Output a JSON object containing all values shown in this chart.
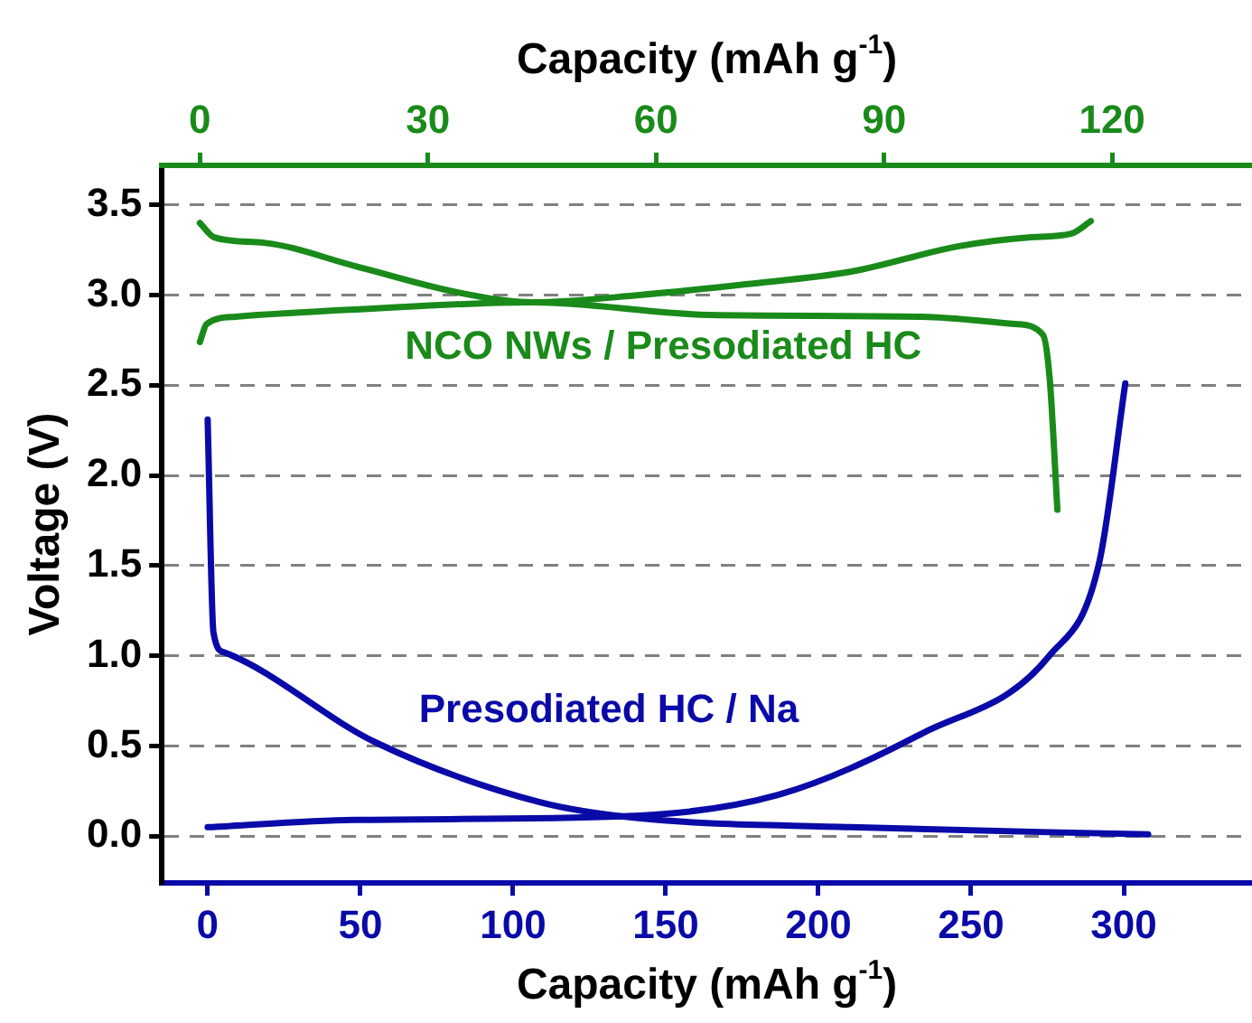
{
  "chart_data": {
    "type": "line",
    "xlabel": "Capacity (mAh g$^{-1}$)",
    "x2label": "Capacity (mAh g$^{-1}$)",
    "ylabel": "Voltage (V)",
    "xlim": [
      -15,
      342
    ],
    "xticks": [
      0,
      50,
      100,
      150,
      200,
      250,
      300
    ],
    "x2lim": [
      -5,
      138.4
    ],
    "x2ticks": [
      0,
      30,
      60,
      90,
      120
    ],
    "ylim": [
      -0.26,
      3.72
    ],
    "yticks": [
      {
        "value": 0,
        "label": "0.0"
      },
      {
        "value": 0.5,
        "label": "0.5"
      },
      {
        "value": 1,
        "label": "1.0"
      },
      {
        "value": 1.5,
        "label": "1.5"
      },
      {
        "value": 2,
        "label": "2.0"
      },
      {
        "value": 2.5,
        "label": "2.5"
      },
      {
        "value": 3,
        "label": "3.0"
      },
      {
        "value": 3.5,
        "label": "3.5"
      }
    ],
    "grid": "y",
    "legend": false,
    "marker": "none",
    "line_style": "solid",
    "series": [
      {
        "color": "#1a8a1a",
        "axis": "x2",
        "x": [
          0,
          1.9,
          8.4,
          20.5,
          34.5,
          43.8,
          57.8,
          71.8,
          85.7,
          99.7,
          109,
          114.6,
          117.2
        ],
        "values": [
          3.4,
          3.32,
          3.29,
          3.16,
          3.01,
          2.96,
          3.0,
          3.06,
          3.13,
          3.27,
          3.32,
          3.34,
          3.41
        ]
      },
      {
        "color": "#1a8a1a",
        "axis": "x2",
        "x": [
          0,
          0.9,
          4.7,
          20.5,
          43.8,
          67.1,
          95,
          107.2,
          110.9,
          111.8,
          112.8
        ],
        "values": [
          2.74,
          2.84,
          2.88,
          2.92,
          2.96,
          2.89,
          2.88,
          2.84,
          2.78,
          2.53,
          1.81
        ]
      },
      {
        "color": "#0a0aa8",
        "x": [
          0,
          1.9,
          5.3,
          55,
          108.5,
          141,
          210.6,
          308
        ],
        "values": [
          2.31,
          1.13,
          1.02,
          0.52,
          0.19,
          0.1,
          0.05,
          0.01
        ]
      },
      {
        "color": "#0a0aa8",
        "x": [
          0,
          48,
          136,
          187,
          234,
          275.6,
          292,
          300.5
        ],
        "values": [
          0.05,
          0.09,
          0.11,
          0.23,
          0.57,
          1.0,
          1.52,
          2.51
        ]
      }
    ],
    "annotations": [
      "NCO NWs / Presodiated HC",
      "Presodiated HC / Na"
    ]
  }
}
